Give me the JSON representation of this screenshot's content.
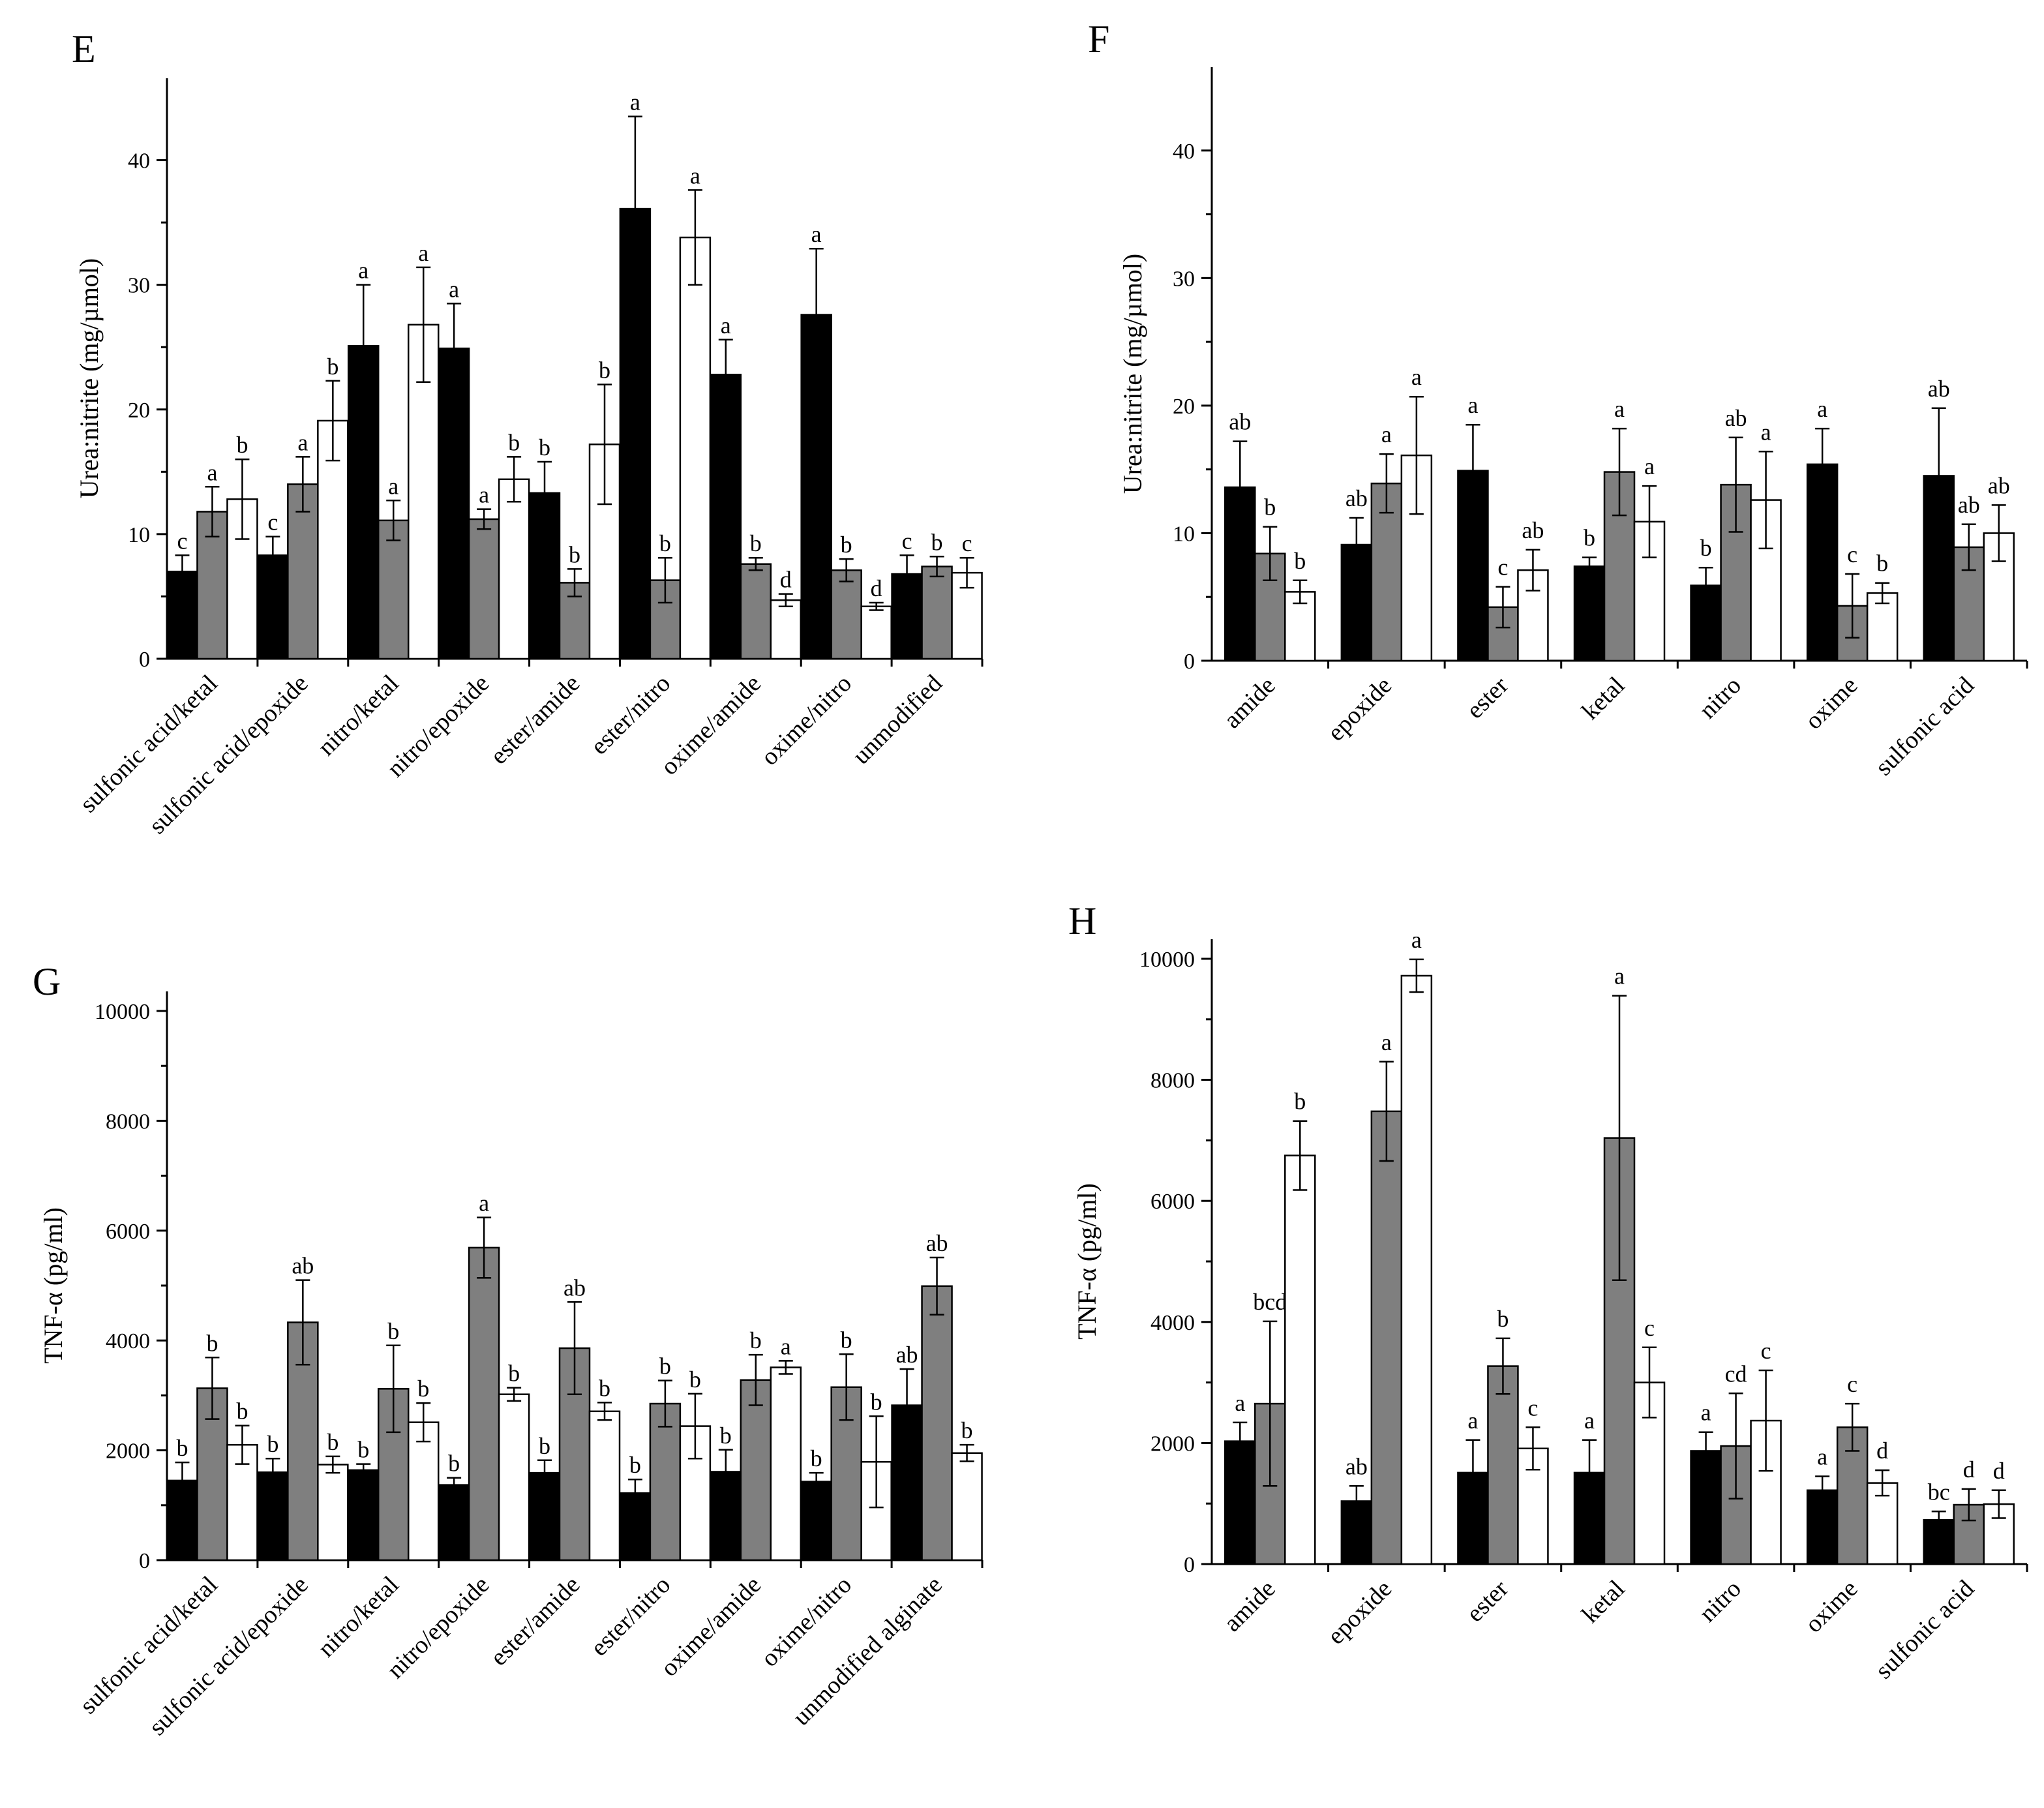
{
  "colors": {
    "black": "#000000",
    "gray": "#7f7f7f",
    "white": "#ffffff"
  },
  "chart_data": [
    {
      "id": "E",
      "panel_label": "E",
      "type": "bar",
      "ylabel": "Urea:nitrite (mg/µmol)",
      "ylim": [
        0,
        45
      ],
      "yticks": [
        0,
        10,
        20,
        30,
        40
      ],
      "categories": [
        "sulfonic acid/ketal",
        "sulfonic acid/epoxide",
        "nitro/ketal",
        "nitro/epoxide",
        "ester/amide",
        "ester/nitro",
        "oxime/amide",
        "oxime/nitro",
        "unmodified"
      ],
      "series": [
        {
          "name": "series-1",
          "color": "black",
          "values": [
            7.0,
            8.3,
            25.1,
            24.9,
            13.3,
            36.1,
            22.8,
            27.6,
            6.8
          ],
          "errors": [
            1.3,
            1.5,
            4.9,
            3.6,
            2.5,
            7.4,
            2.8,
            5.3,
            1.5
          ],
          "labels": [
            "c",
            "c",
            "a",
            "a",
            "b",
            "a",
            "a",
            "a",
            "c"
          ]
        },
        {
          "name": "series-2",
          "color": "gray",
          "values": [
            11.8,
            14.0,
            11.1,
            11.2,
            6.1,
            6.3,
            7.6,
            7.1,
            7.4
          ],
          "errors": [
            2.0,
            2.2,
            1.6,
            0.8,
            1.1,
            1.8,
            0.5,
            0.9,
            0.8
          ],
          "labels": [
            "a",
            "a",
            "a",
            "a",
            "b",
            "b",
            "b",
            "b",
            "b"
          ]
        },
        {
          "name": "series-3",
          "color": "white",
          "values": [
            12.8,
            19.1,
            26.8,
            14.4,
            17.2,
            33.8,
            4.7,
            4.2,
            6.9
          ],
          "errors": [
            3.2,
            3.2,
            4.6,
            1.8,
            4.8,
            3.8,
            0.5,
            0.3,
            1.2
          ],
          "labels": [
            "b",
            "b",
            "a",
            "b",
            "b",
            "a",
            "d",
            "d",
            "c"
          ]
        }
      ]
    },
    {
      "id": "F",
      "panel_label": "F",
      "type": "bar",
      "ylabel": "Urea:nitrite (mg/µmol)",
      "ylim": [
        0,
        45
      ],
      "yticks": [
        0,
        10,
        20,
        30,
        40
      ],
      "categories": [
        "amide",
        "epoxide",
        "ester",
        "ketal",
        "nitro",
        "oxime",
        "sulfonic acid"
      ],
      "series": [
        {
          "name": "series-1",
          "color": "black",
          "values": [
            13.6,
            9.1,
            14.9,
            7.4,
            5.9,
            15.4,
            14.5
          ],
          "errors": [
            3.6,
            2.1,
            3.6,
            0.7,
            1.4,
            2.8,
            5.3
          ],
          "labels": [
            "ab",
            "ab",
            "a",
            "b",
            "b",
            "a",
            "ab"
          ]
        },
        {
          "name": "series-2",
          "color": "gray",
          "values": [
            8.4,
            13.9,
            4.2,
            14.8,
            13.8,
            4.3,
            8.9
          ],
          "errors": [
            2.1,
            2.3,
            1.6,
            3.4,
            3.7,
            2.5,
            1.8
          ],
          "labels": [
            "b",
            "a",
            "c",
            "a",
            "ab",
            "c",
            "ab"
          ]
        },
        {
          "name": "series-3",
          "color": "white",
          "values": [
            5.4,
            16.1,
            7.1,
            10.9,
            12.6,
            5.3,
            10.0
          ],
          "errors": [
            0.9,
            4.6,
            1.6,
            2.8,
            3.8,
            0.8,
            2.2
          ],
          "labels": [
            "b",
            "a",
            "ab",
            "a",
            "a",
            "b",
            "ab"
          ]
        }
      ]
    },
    {
      "id": "G",
      "panel_label": "G",
      "type": "bar",
      "ylabel": "TNF-α (pg/ml)",
      "ylim": [
        0,
        10000
      ],
      "yticks": [
        0,
        2000,
        4000,
        6000,
        8000,
        10000
      ],
      "categories": [
        "sulfonic acid/ketal",
        "sulfonic acid/epoxide",
        "nitro/ketal",
        "nitro/epoxide",
        "ester/amide",
        "ester/nitro",
        "oxime/amide",
        "oxime/nitro",
        "unmodified alginate"
      ],
      "series": [
        {
          "name": "series-1",
          "color": "black",
          "values": [
            1450,
            1600,
            1640,
            1370,
            1590,
            1220,
            1610,
            1430,
            2820
          ],
          "errors": [
            330,
            250,
            110,
            130,
            230,
            250,
            400,
            160,
            660
          ],
          "labels": [
            "b",
            "b",
            "b",
            "b",
            "b",
            "b",
            "b",
            "b",
            "ab"
          ]
        },
        {
          "name": "series-2",
          "color": "gray",
          "values": [
            3130,
            4330,
            3120,
            5690,
            3860,
            2850,
            3280,
            3150,
            4990
          ],
          "errors": [
            560,
            770,
            790,
            550,
            840,
            420,
            460,
            600,
            520
          ],
          "labels": [
            "b",
            "ab",
            "b",
            "a",
            "ab",
            "b",
            "b",
            "b",
            "ab"
          ]
        },
        {
          "name": "series-3",
          "color": "white",
          "values": [
            2100,
            1740,
            2510,
            3020,
            2710,
            2440,
            3510,
            1790,
            1950
          ],
          "errors": [
            350,
            150,
            350,
            120,
            160,
            590,
            120,
            830,
            150
          ],
          "labels": [
            "b",
            "b",
            "b",
            "b",
            "b",
            "b",
            "a",
            "b",
            "b"
          ]
        }
      ]
    },
    {
      "id": "H",
      "panel_label": "H",
      "type": "bar",
      "ylabel": "TNF-α (pg/ml)",
      "ylim": [
        0,
        10000
      ],
      "yticks": [
        0,
        2000,
        4000,
        6000,
        8000,
        10000
      ],
      "categories": [
        "amide",
        "epoxide",
        "ester",
        "ketal",
        "nitro",
        "oxime",
        "sulfonic acid"
      ],
      "series": [
        {
          "name": "series-1",
          "color": "black",
          "values": [
            2030,
            1040,
            1510,
            1510,
            1870,
            1220,
            730
          ],
          "errors": [
            310,
            250,
            540,
            540,
            310,
            230,
            140
          ],
          "labels": [
            "a",
            "ab",
            "a",
            "a",
            "a",
            "a",
            "bc"
          ]
        },
        {
          "name": "series-2",
          "color": "gray",
          "values": [
            2650,
            7480,
            3270,
            7040,
            1950,
            2260,
            980
          ],
          "errors": [
            1360,
            820,
            460,
            2350,
            870,
            390,
            260
          ],
          "labels": [
            "bcd",
            "a",
            "b",
            "a",
            "cd",
            "c",
            "d"
          ]
        },
        {
          "name": "series-3",
          "color": "white",
          "values": [
            6750,
            9720,
            1910,
            3000,
            2370,
            1340,
            990
          ],
          "errors": [
            570,
            270,
            350,
            580,
            830,
            210,
            230
          ],
          "labels": [
            "b",
            "a",
            "c",
            "c",
            "c",
            "d",
            "d"
          ]
        }
      ]
    }
  ]
}
